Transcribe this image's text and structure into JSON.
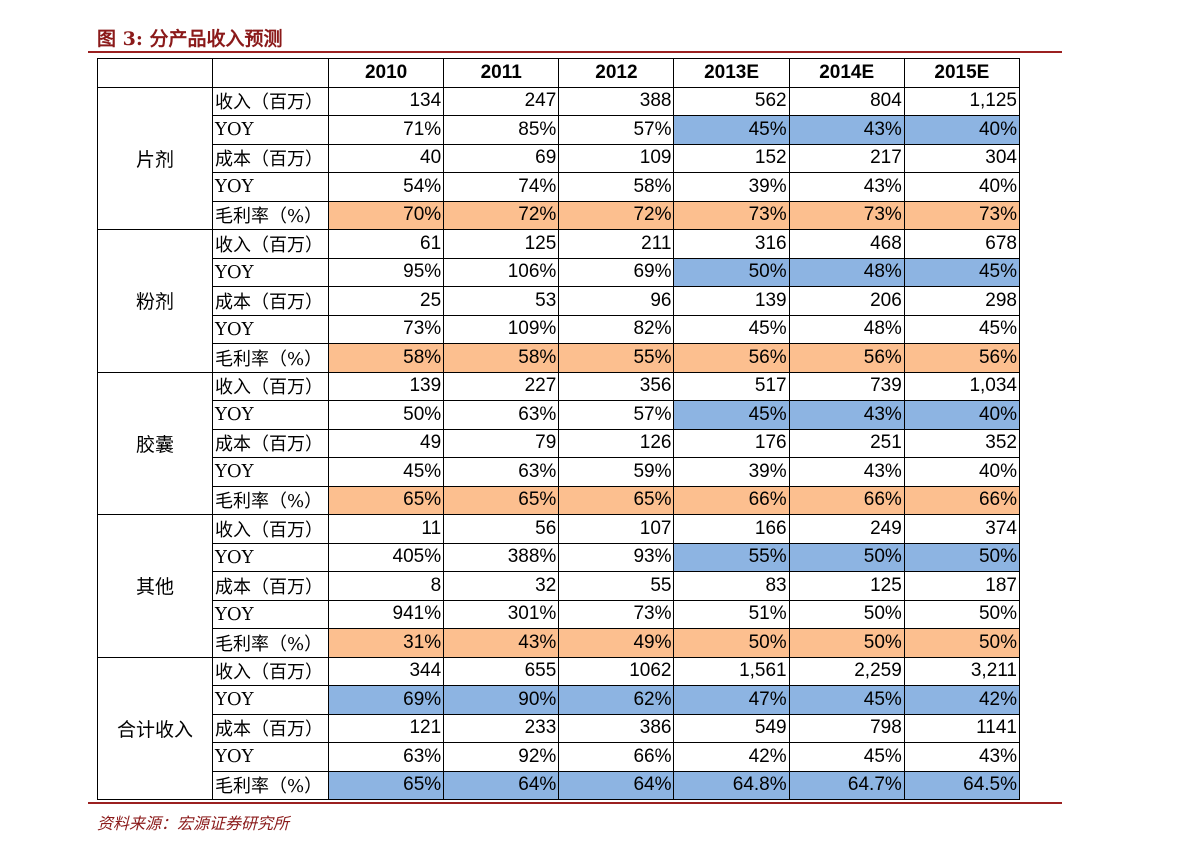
{
  "header": {
    "title": "图 3:  分产品收入预测"
  },
  "table": {
    "columns": [
      "2010",
      "2011",
      "2012",
      "2013E",
      "2014E",
      "2015E"
    ],
    "groups": [
      {
        "name": "片剂",
        "rows": [
          {
            "label": "收入（百万）",
            "cells": [
              "134",
              "247",
              "388",
              "562",
              "804",
              "1,125"
            ]
          },
          {
            "label": "YOY",
            "cells": [
              "71%",
              "85%",
              "57%",
              "45%",
              "43%",
              "40%"
            ],
            "cell_colors": [
              null,
              null,
              null,
              "#8db4e2",
              "#8db4e2",
              "#8db4e2"
            ]
          },
          {
            "label": "成本（百万）",
            "cells": [
              "40",
              "69",
              "109",
              "152",
              "217",
              "304"
            ]
          },
          {
            "label": "YOY",
            "cells": [
              "54%",
              "74%",
              "58%",
              "39%",
              "43%",
              "40%"
            ]
          },
          {
            "label": "毛利率（%）",
            "cells": [
              "70%",
              "72%",
              "72%",
              "73%",
              "73%",
              "73%"
            ],
            "cell_colors": [
              "#fcbf8f",
              "#fcbf8f",
              "#fcbf8f",
              "#fcbf8f",
              "#fcbf8f",
              "#fcbf8f"
            ]
          }
        ]
      },
      {
        "name": "粉剂",
        "rows": [
          {
            "label": "收入（百万）",
            "cells": [
              "61",
              "125",
              "211",
              "316",
              "468",
              "678"
            ]
          },
          {
            "label": "YOY",
            "cells": [
              "95%",
              "106%",
              "69%",
              "50%",
              "48%",
              "45%"
            ],
            "cell_colors": [
              null,
              null,
              null,
              "#8db4e2",
              "#8db4e2",
              "#8db4e2"
            ]
          },
          {
            "label": "成本（百万）",
            "cells": [
              "25",
              "53",
              "96",
              "139",
              "206",
              "298"
            ]
          },
          {
            "label": "YOY",
            "cells": [
              "73%",
              "109%",
              "82%",
              "45%",
              "48%",
              "45%"
            ]
          },
          {
            "label": "毛利率（%）",
            "cells": [
              "58%",
              "58%",
              "55%",
              "56%",
              "56%",
              "56%"
            ],
            "cell_colors": [
              "#fcbf8f",
              "#fcbf8f",
              "#fcbf8f",
              "#fcbf8f",
              "#fcbf8f",
              "#fcbf8f"
            ]
          }
        ]
      },
      {
        "name": "胶囊",
        "rows": [
          {
            "label": "收入（百万）",
            "cells": [
              "139",
              "227",
              "356",
              "517",
              "739",
              "1,034"
            ]
          },
          {
            "label": "YOY",
            "cells": [
              "50%",
              "63%",
              "57%",
              "45%",
              "43%",
              "40%"
            ],
            "cell_colors": [
              null,
              null,
              null,
              "#8db4e2",
              "#8db4e2",
              "#8db4e2"
            ]
          },
          {
            "label": "成本（百万）",
            "cells": [
              "49",
              "79",
              "126",
              "176",
              "251",
              "352"
            ]
          },
          {
            "label": "YOY",
            "cells": [
              "45%",
              "63%",
              "59%",
              "39%",
              "43%",
              "40%"
            ]
          },
          {
            "label": "毛利率（%）",
            "cells": [
              "65%",
              "65%",
              "65%",
              "66%",
              "66%",
              "66%"
            ],
            "cell_colors": [
              "#fcbf8f",
              "#fcbf8f",
              "#fcbf8f",
              "#fcbf8f",
              "#fcbf8f",
              "#fcbf8f"
            ]
          }
        ]
      },
      {
        "name": "其他",
        "rows": [
          {
            "label": "收入（百万）",
            "cells": [
              "11",
              "56",
              "107",
              "166",
              "249",
              "374"
            ]
          },
          {
            "label": "YOY",
            "cells": [
              "405%",
              "388%",
              "93%",
              "55%",
              "50%",
              "50%"
            ],
            "cell_colors": [
              null,
              null,
              null,
              "#8db4e2",
              "#8db4e2",
              "#8db4e2"
            ]
          },
          {
            "label": "成本（百万）",
            "cells": [
              "8",
              "32",
              "55",
              "83",
              "125",
              "187"
            ]
          },
          {
            "label": "YOY",
            "cells": [
              "941%",
              "301%",
              "73%",
              "51%",
              "50%",
              "50%"
            ]
          },
          {
            "label": "毛利率（%）",
            "cells": [
              "31%",
              "43%",
              "49%",
              "50%",
              "50%",
              "50%"
            ],
            "cell_colors": [
              "#fcbf8f",
              "#fcbf8f",
              "#fcbf8f",
              "#fcbf8f",
              "#fcbf8f",
              "#fcbf8f"
            ]
          }
        ]
      },
      {
        "name": "合计收入",
        "rows": [
          {
            "label": "收入（百万）",
            "cells": [
              "344",
              "655",
              "1062",
              "1,561",
              "2,259",
              "3,211"
            ]
          },
          {
            "label": "YOY",
            "cells": [
              "69%",
              "90%",
              "62%",
              "47%",
              "45%",
              "42%"
            ],
            "cell_colors": [
              "#8db4e2",
              "#8db4e2",
              "#8db4e2",
              "#8db4e2",
              "#8db4e2",
              "#8db4e2"
            ]
          },
          {
            "label": "成本（百万）",
            "cells": [
              "121",
              "233",
              "386",
              "549",
              "798",
              "1141"
            ]
          },
          {
            "label": "YOY",
            "cells": [
              "63%",
              "92%",
              "66%",
              "42%",
              "45%",
              "43%"
            ]
          },
          {
            "label": "毛利率（%）",
            "cells": [
              "65%",
              "64%",
              "64%",
              "64.8%",
              "64.7%",
              "64.5%"
            ],
            "cell_colors": [
              "#8db4e2",
              "#8db4e2",
              "#8db4e2",
              "#8db4e2",
              "#8db4e2",
              "#8db4e2"
            ]
          }
        ]
      }
    ]
  },
  "footer": {
    "source": "资料来源：宏源证券研究所"
  }
}
